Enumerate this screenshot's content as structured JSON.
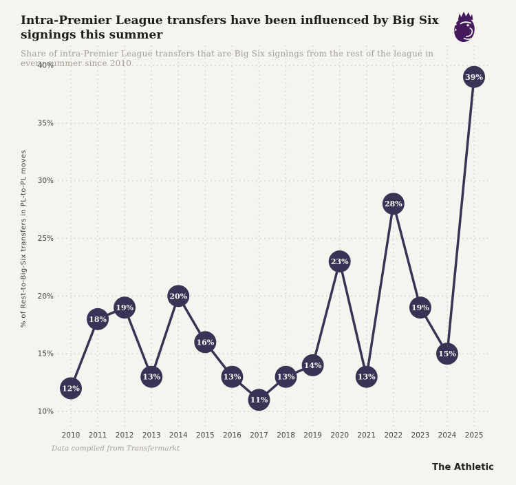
{
  "header": {
    "title": "Intra-Premier League transfers have been influenced by Big Six signings this summer",
    "subtitle": "Share of intra-Premier League transfers that are Big Six signings from the rest of the league in every summer since 2010",
    "logo_icon": "premier-league-lion-icon"
  },
  "chart_data": {
    "type": "line",
    "title": "Intra-Premier League transfers have been influenced by Big Six signings this summer",
    "categories": [
      "2010",
      "2011",
      "2012",
      "2013",
      "2014",
      "2015",
      "2016",
      "2017",
      "2018",
      "2019",
      "2020",
      "2021",
      "2022",
      "2023",
      "2024",
      "2025"
    ],
    "values": [
      12,
      18,
      19,
      13,
      20,
      16,
      13,
      11,
      13,
      14,
      23,
      13,
      28,
      19,
      15,
      39
    ],
    "point_labels": [
      "12%",
      "18%",
      "19%",
      "13%",
      "20%",
      "16%",
      "13%",
      "11%",
      "13%",
      "14%",
      "23%",
      "13%",
      "28%",
      "19%",
      "15%",
      "39%"
    ],
    "xlabel": "",
    "ylabel": "% of Rest-to-Big-Six transfers in PL-to-PL moves",
    "ylim": [
      10,
      40
    ],
    "y_ticks": [
      {
        "value": 10,
        "label": "10%"
      },
      {
        "value": 15,
        "label": "15%"
      },
      {
        "value": 20,
        "label": "20%"
      },
      {
        "value": 25,
        "label": "25%"
      },
      {
        "value": 30,
        "label": "30%"
      },
      {
        "value": 35,
        "label": "35%"
      },
      {
        "value": 40,
        "label": "40%"
      }
    ],
    "grid": "dotted horizontal and vertical",
    "legend": "none",
    "colors": {
      "point_fill": "#3a3356",
      "line": "#3a3356",
      "point_text": "#f7f6f1",
      "grid": "#d3d1c5",
      "axis_text": "#46453f",
      "background": "#f5f4ef",
      "brand_purple": "#45195e"
    }
  },
  "footer": {
    "source_note": "Data compiled from Transfermarkt",
    "brand": "The Athletic"
  }
}
